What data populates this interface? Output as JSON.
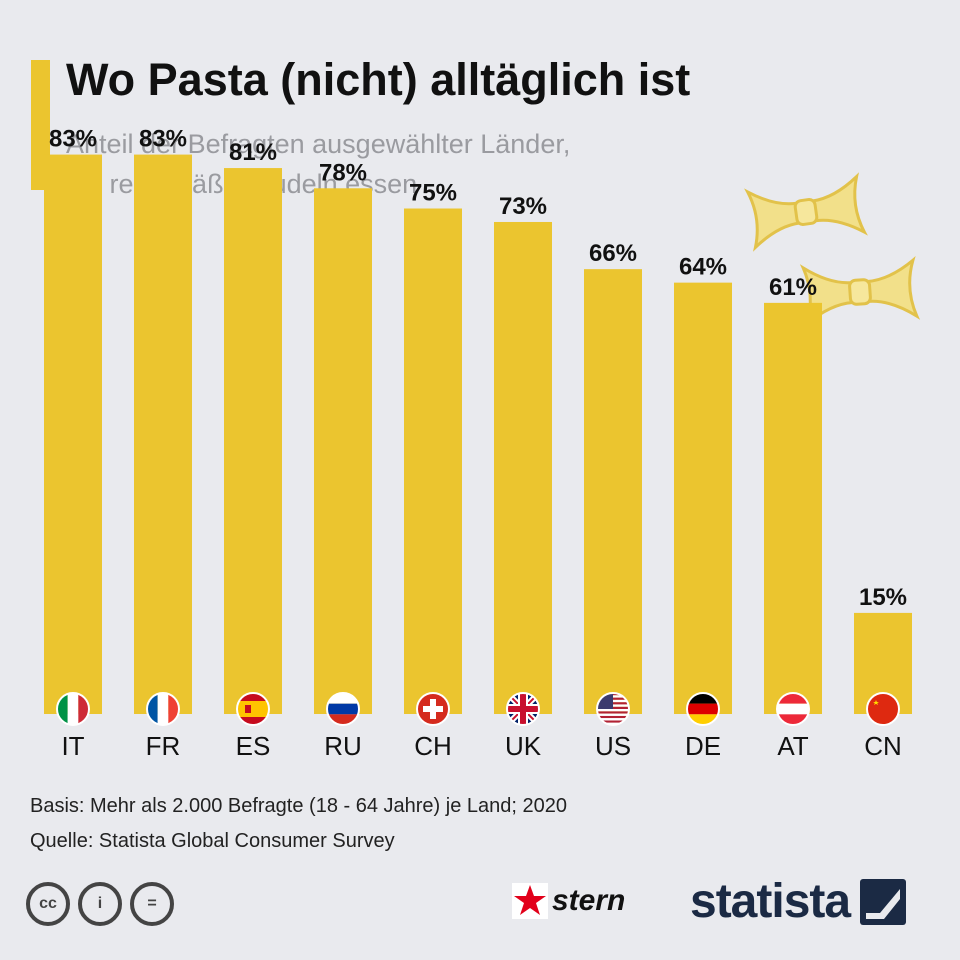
{
  "header": {
    "title": "Wo Pasta (nicht) alltäglich ist",
    "subtitle_line1": "Anteil der Befragten ausgewählter Länder,",
    "subtitle_line2": "die regelmäßig Nudeln essen"
  },
  "colors": {
    "bar": "#ebc52f",
    "accent": "#ebc52f",
    "background": "#e9eaee"
  },
  "chart_data": {
    "type": "bar",
    "title": "Wo Pasta (nicht) alltäglich ist",
    "subtitle": "Anteil der Befragten ausgewählter Länder, die regelmäßig Nudeln essen",
    "xlabel": "",
    "ylabel": "",
    "ylim": [
      0,
      100
    ],
    "categories": [
      "IT",
      "FR",
      "ES",
      "RU",
      "CH",
      "UK",
      "US",
      "DE",
      "AT",
      "CN"
    ],
    "values": [
      83,
      83,
      81,
      78,
      75,
      73,
      66,
      64,
      61,
      15
    ],
    "value_labels": [
      "83%",
      "83%",
      "81%",
      "78%",
      "75%",
      "73%",
      "66%",
      "64%",
      "61%",
      "15%"
    ],
    "flags": [
      "italy-flag-icon",
      "france-flag-icon",
      "spain-flag-icon",
      "russia-flag-icon",
      "switzerland-flag-icon",
      "uk-flag-icon",
      "usa-flag-icon",
      "germany-flag-icon",
      "austria-flag-icon",
      "china-flag-icon"
    ]
  },
  "footer": {
    "basis": "Basis: Mehr als 2.000 Befragte (18 - 64 Jahre) je Land; 2020",
    "source": "Quelle: Statista Global Consumer Survey",
    "cc_labels": [
      "cc",
      "i",
      "="
    ],
    "stern_label": "stern",
    "statista_label": "statista"
  }
}
